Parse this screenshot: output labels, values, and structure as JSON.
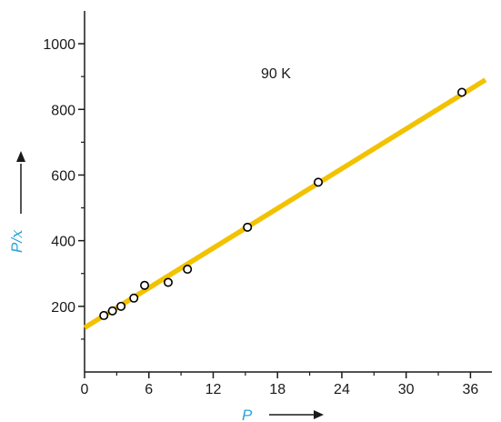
{
  "chart_data": {
    "type": "scatter",
    "title": "",
    "annotation": "90 K",
    "xlabel": "P",
    "ylabel_main": "P/",
    "ylabel_sub": "x",
    "xlim": [
      0,
      38
    ],
    "ylim": [
      0,
      1100
    ],
    "x_ticks": [
      0,
      6,
      12,
      18,
      24,
      30,
      36
    ],
    "y_ticks": [
      200,
      400,
      600,
      800,
      1000
    ],
    "series": [
      {
        "points": [
          {
            "x": 1.8,
            "y": 172
          },
          {
            "x": 2.6,
            "y": 186
          },
          {
            "x": 3.4,
            "y": 200
          },
          {
            "x": 4.6,
            "y": 225
          },
          {
            "x": 5.6,
            "y": 264
          },
          {
            "x": 7.8,
            "y": 273
          },
          {
            "x": 9.6,
            "y": 313
          },
          {
            "x": 15.2,
            "y": 441
          },
          {
            "x": 21.8,
            "y": 578
          },
          {
            "x": 35.2,
            "y": 852
          }
        ]
      }
    ],
    "fit_line": {
      "from": {
        "x": 0,
        "y": 135
      },
      "to": {
        "x": 37.4,
        "y": 890
      }
    },
    "colors": {
      "fit_line": "#f2c200",
      "axis_label": "#2ba3d9",
      "axis": "#1a1a1a",
      "marker_fill": "#ffffff",
      "marker_stroke": "#000000"
    },
    "grid": false,
    "legend": "none"
  }
}
